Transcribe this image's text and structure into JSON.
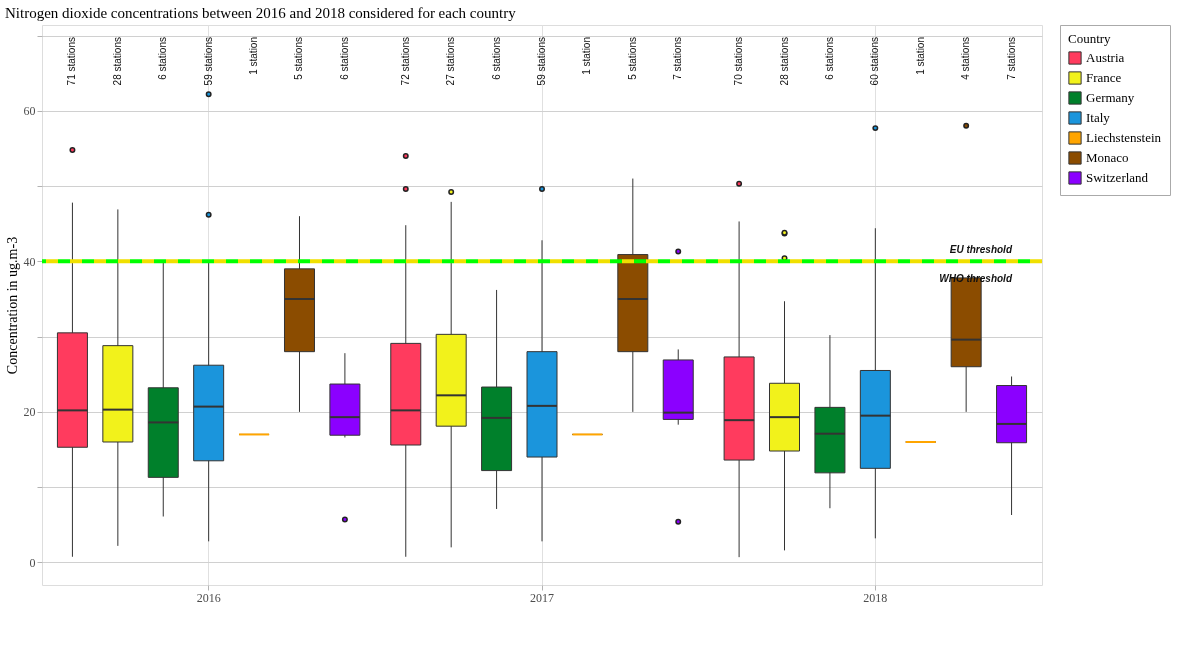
{
  "chart_data": {
    "type": "box",
    "title": "Nitrogen dioxide concentrations between 2016 and 2018 considered for each country",
    "ylabel": "Concentration in ug.m-3",
    "legend_title": "Country",
    "legend": "right",
    "grid": true,
    "categories": [
      "2016",
      "2017",
      "2018"
    ],
    "ylim": [
      -3,
      71.4
    ],
    "yticks": [
      0,
      {
        "value": 10,
        "label": null
      },
      20,
      {
        "value": 30,
        "label": null
      },
      40,
      {
        "value": 50,
        "label": null
      },
      60,
      {
        "value": 70,
        "label": null
      }
    ],
    "series": [
      {
        "name": "Austria",
        "color": "#ff3b5e",
        "value_labels": [
          "71 stations",
          "72 stations",
          "70 stations"
        ],
        "boxes": [
          {
            "low": 0.75,
            "q1": 15.3,
            "median": 20.2,
            "q3": 30.5,
            "high": 47.8,
            "outliers": [
              54.8
            ]
          },
          {
            "low": 0.75,
            "q1": 15.6,
            "median": 20.2,
            "q3": 29.1,
            "high": 44.8,
            "outliers": [
              49.6,
              54.0
            ]
          },
          {
            "low": 0.7,
            "q1": 13.6,
            "median": 18.9,
            "q3": 27.3,
            "high": 45.3,
            "outliers": [
              50.3
            ]
          }
        ]
      },
      {
        "name": "France",
        "color": "#f2f21b",
        "value_labels": [
          "28 stations",
          "27 stations",
          "28 stations"
        ],
        "boxes": [
          {
            "low": 2.2,
            "q1": 16.0,
            "median": 20.3,
            "q3": 28.8,
            "high": 46.9
          },
          {
            "low": 2.0,
            "q1": 18.1,
            "median": 22.2,
            "q3": 30.3,
            "high": 47.9,
            "outliers": [
              49.2
            ]
          },
          {
            "low": 1.6,
            "q1": 14.8,
            "median": 19.3,
            "q3": 23.8,
            "high": 34.7,
            "outliers": [
              40.4,
              43.7,
              43.8
            ]
          }
        ]
      },
      {
        "name": "Germany",
        "color": "#00802b",
        "value_labels": [
          "6 stations",
          "6 stations",
          "6 stations"
        ],
        "boxes": [
          {
            "low": 6.1,
            "q1": 11.3,
            "median": 18.6,
            "q3": 23.2,
            "high": 39.8
          },
          {
            "low": 7.1,
            "q1": 12.2,
            "median": 19.2,
            "q3": 23.3,
            "high": 36.2
          },
          {
            "low": 7.2,
            "q1": 11.9,
            "median": 17.1,
            "q3": 20.6,
            "high": 30.2
          }
        ]
      },
      {
        "name": "Italy",
        "color": "#1b95dc",
        "value_labels": [
          "59 stations",
          "59 stations",
          "60 stations"
        ],
        "boxes": [
          {
            "low": 2.8,
            "q1": 13.5,
            "median": 20.7,
            "q3": 26.2,
            "high": 39.8,
            "outliers": [
              46.2,
              62.2
            ]
          },
          {
            "low": 2.8,
            "q1": 14.0,
            "median": 20.8,
            "q3": 28.0,
            "high": 42.8,
            "outliers": [
              49.6
            ]
          },
          {
            "low": 3.2,
            "q1": 12.5,
            "median": 19.5,
            "q3": 25.5,
            "high": 44.4,
            "outliers": [
              57.7
            ]
          }
        ]
      },
      {
        "name": "Liechstenstein",
        "color": "#ffa500",
        "value_labels": [
          "1 station",
          "1 station",
          "1 station"
        ],
        "boxes": [
          {
            "low": 17.0,
            "q1": 17.0,
            "median": 17.0,
            "q3": 17.0,
            "high": 17.0
          },
          {
            "low": 17.0,
            "q1": 17.0,
            "median": 17.0,
            "q3": 17.0,
            "high": 17.0
          },
          {
            "low": 16.0,
            "q1": 16.0,
            "median": 16.0,
            "q3": 16.0,
            "high": 16.0
          }
        ]
      },
      {
        "name": "Monaco",
        "color": "#8b4c00",
        "value_labels": [
          "5 stations",
          "5 stations",
          "4 stations"
        ],
        "boxes": [
          {
            "low": 20.0,
            "q1": 28.0,
            "median": 35.0,
            "q3": 39.0,
            "high": 46.0
          },
          {
            "low": 20.0,
            "q1": 28.0,
            "median": 35.0,
            "q3": 40.9,
            "high": 51.0
          },
          {
            "low": 20.0,
            "q1": 26.0,
            "median": 29.6,
            "q3": 37.8,
            "high": 37.8,
            "outliers": [
              58.0
            ]
          }
        ]
      },
      {
        "name": "Switzerland",
        "color": "#8b00ff",
        "value_labels": [
          "6 stations",
          "7 stations",
          "7 stations"
        ],
        "boxes": [
          {
            "low": 16.6,
            "q1": 16.9,
            "median": 19.3,
            "q3": 23.7,
            "high": 27.8,
            "outliers": [
              5.7
            ]
          },
          {
            "low": 18.3,
            "q1": 19.0,
            "median": 19.9,
            "q3": 26.9,
            "high": 28.3,
            "outliers": [
              5.4,
              41.3
            ]
          },
          {
            "low": 6.3,
            "q1": 15.9,
            "median": 18.4,
            "q3": 23.5,
            "high": 24.7
          }
        ]
      }
    ],
    "ref_lines": [
      {
        "axis": "y",
        "value": 40,
        "label": "EU threshold",
        "color": "#f0e000",
        "line_style": "dashed"
      },
      {
        "axis": "y",
        "value": 40,
        "label": "WHO threshold",
        "color": "#00ff00",
        "line_style": "dashed"
      }
    ]
  }
}
